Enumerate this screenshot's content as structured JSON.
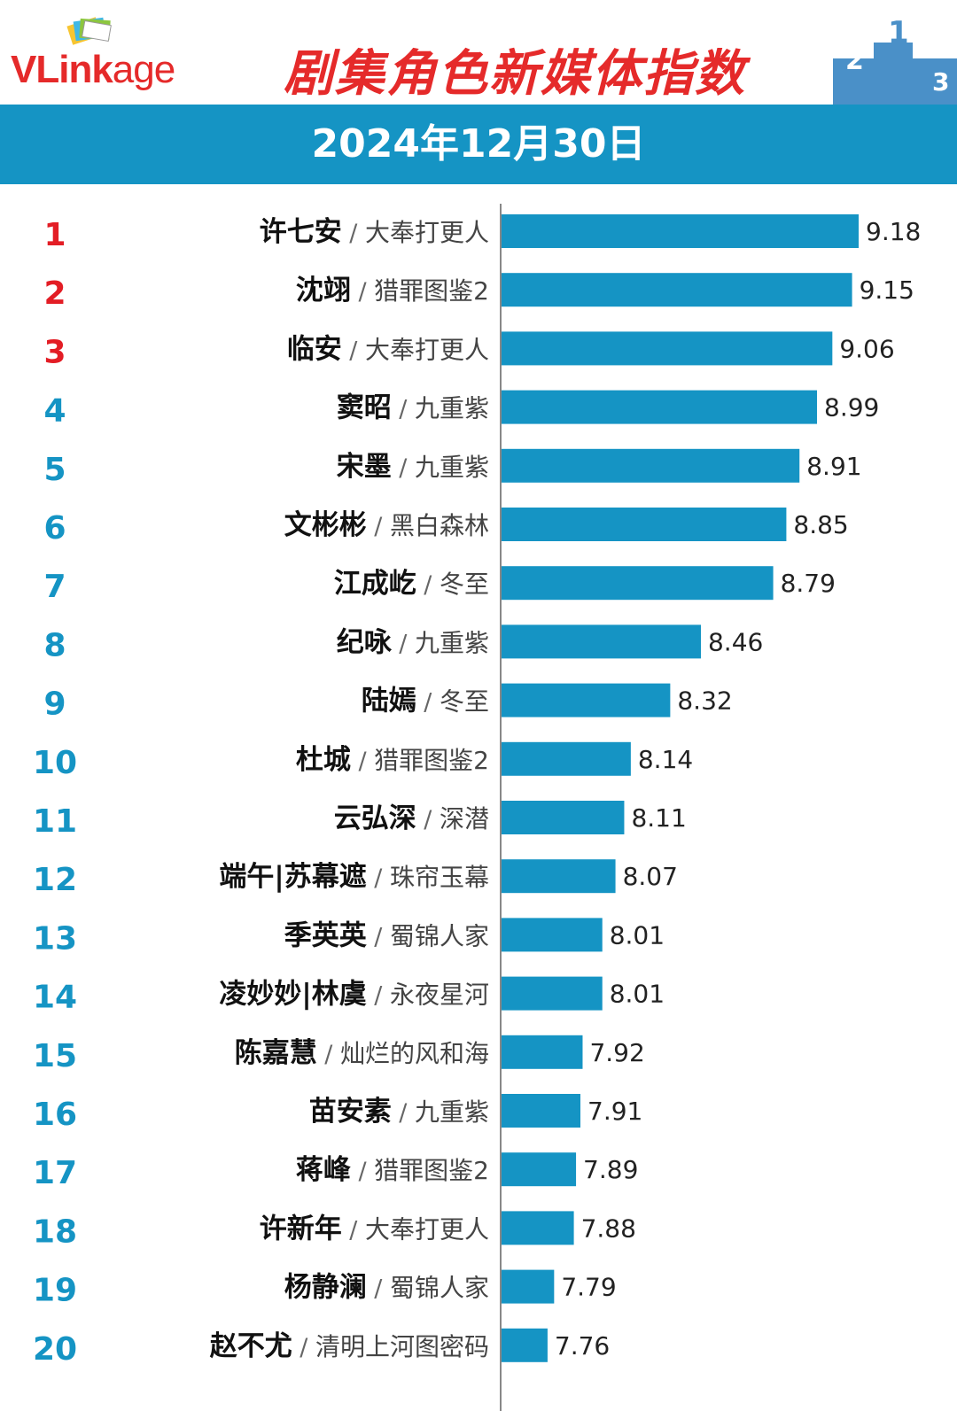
{
  "header": {
    "logo_text": "VLinkage",
    "title": "剧集角色新媒体指数",
    "date": "2024年12月30日"
  },
  "colors": {
    "bar": "#1594c4",
    "rank_top3": "#e31d25",
    "rank_other": "#1594c4",
    "title": "#e52a2a"
  },
  "chart_data": {
    "type": "bar",
    "orientation": "horizontal",
    "title": "剧集角色新媒体指数",
    "subtitle": "2024年12月30日",
    "xlabel": "",
    "ylabel": "",
    "grid": false,
    "rows": [
      {
        "rank": "1",
        "name": "许七安",
        "show": "大奉打更人",
        "value": 9.18
      },
      {
        "rank": "2",
        "name": "沈翊",
        "show": "猎罪图鉴2",
        "value": 9.15
      },
      {
        "rank": "3",
        "name": "临安",
        "show": "大奉打更人",
        "value": 9.06
      },
      {
        "rank": "4",
        "name": "窦昭",
        "show": "九重紫",
        "value": 8.99
      },
      {
        "rank": "5",
        "name": "宋墨",
        "show": "九重紫",
        "value": 8.91
      },
      {
        "rank": "6",
        "name": "文彬彬",
        "show": "黑白森林",
        "value": 8.85
      },
      {
        "rank": "7",
        "name": "江成屹",
        "show": "冬至",
        "value": 8.79
      },
      {
        "rank": "8",
        "name": "纪咏",
        "show": "九重紫",
        "value": 8.46
      },
      {
        "rank": "9",
        "name": "陆嫣",
        "show": "冬至",
        "value": 8.32
      },
      {
        "rank": "10",
        "name": "杜城",
        "show": "猎罪图鉴2",
        "value": 8.14
      },
      {
        "rank": "11",
        "name": "云弘深",
        "show": "深潜",
        "value": 8.11
      },
      {
        "rank": "12",
        "name": "端午|苏幕遮",
        "show": "珠帘玉幕",
        "value": 8.07
      },
      {
        "rank": "13",
        "name": "季英英",
        "show": "蜀锦人家",
        "value": 8.01
      },
      {
        "rank": "14",
        "name": "凌妙妙|林虞",
        "show": "永夜星河",
        "value": 8.01
      },
      {
        "rank": "15",
        "name": "陈嘉慧",
        "show": "灿烂的风和海",
        "value": 7.92
      },
      {
        "rank": "16",
        "name": "苗安素",
        "show": "九重紫",
        "value": 7.91
      },
      {
        "rank": "17",
        "name": "蒋峰",
        "show": "猎罪图鉴2",
        "value": 7.89
      },
      {
        "rank": "18",
        "name": "许新年",
        "show": "大奉打更人",
        "value": 7.88
      },
      {
        "rank": "19",
        "name": "杨静澜",
        "show": "蜀锦人家",
        "value": 7.79
      },
      {
        "rank": "20",
        "name": "赵不尤",
        "show": "清明上河图密码",
        "value": 7.76
      }
    ]
  }
}
